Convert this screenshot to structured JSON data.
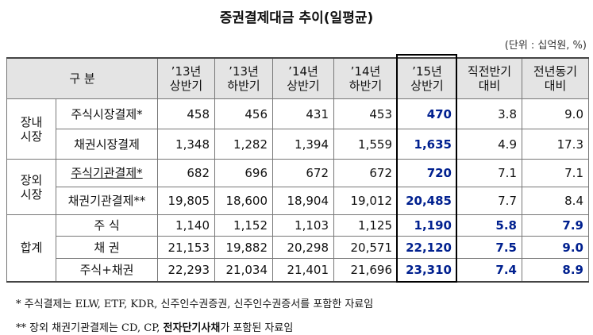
{
  "title": "증권결제대금 추이(일평균)",
  "unit": "(단위 : 십억원, %)",
  "table": {
    "header": [
      [
        "구 분"
      ],
      [
        "’13년",
        "상반기"
      ],
      [
        "’13년",
        "하반기"
      ],
      [
        "’14년",
        "상반기"
      ],
      [
        "’14년",
        "하반기"
      ],
      [
        "’15년",
        "상반기"
      ],
      [
        "직전반기",
        "대비"
      ],
      [
        "전년동기",
        "대비"
      ]
    ],
    "groups": [
      {
        "label": [
          "장내",
          "시장"
        ],
        "rows": [
          {
            "label": "주식시장결제*",
            "values": [
              "458",
              "456",
              "431",
              "453",
              "470",
              "3.8",
              "9.0"
            ]
          },
          {
            "label": "채권시장결제",
            "values": [
              "1,348",
              "1,282",
              "1,394",
              "1,559",
              "1,635",
              "4.9",
              "17.3"
            ]
          }
        ]
      },
      {
        "label": [
          "장외",
          "시장"
        ],
        "rows": [
          {
            "label": "주식기관결제*",
            "values": [
              "682",
              "696",
              "672",
              "672",
              "720",
              "7.1",
              "7.1"
            ]
          },
          {
            "label": "채권기관결제**",
            "values": [
              "19,805",
              "18,600",
              "18,904",
              "19,012",
              "20,485",
              "7.7",
              "8.4"
            ]
          }
        ]
      },
      {
        "label": [
          "합계"
        ],
        "rows": [
          {
            "label": "주 식",
            "values": [
              "1,140",
              "1,152",
              "1,103",
              "1,125",
              "1,190",
              "5.8",
              "7.9"
            ]
          },
          {
            "label": "채 권",
            "values": [
              "21,153",
              "19,882",
              "20,298",
              "20,571",
              "22,120",
              "7.5",
              "9.0"
            ]
          },
          {
            "label": "주식+채권",
            "values": [
              "22,293",
              "21,034",
              "21,401",
              "21,696",
              "23,310",
              "7.4",
              "8.9"
            ]
          }
        ]
      }
    ]
  },
  "footnotes": [
    [
      "* 주식결제는 ELW, ETF, KDR, 신주인수권증권, 신주인수권증서를 포함한 자료임"
    ],
    [
      "** 장외 채권기관결제는 CD, CP, ",
      "전자단기사채",
      "가 포함된 자료임"
    ]
  ]
}
